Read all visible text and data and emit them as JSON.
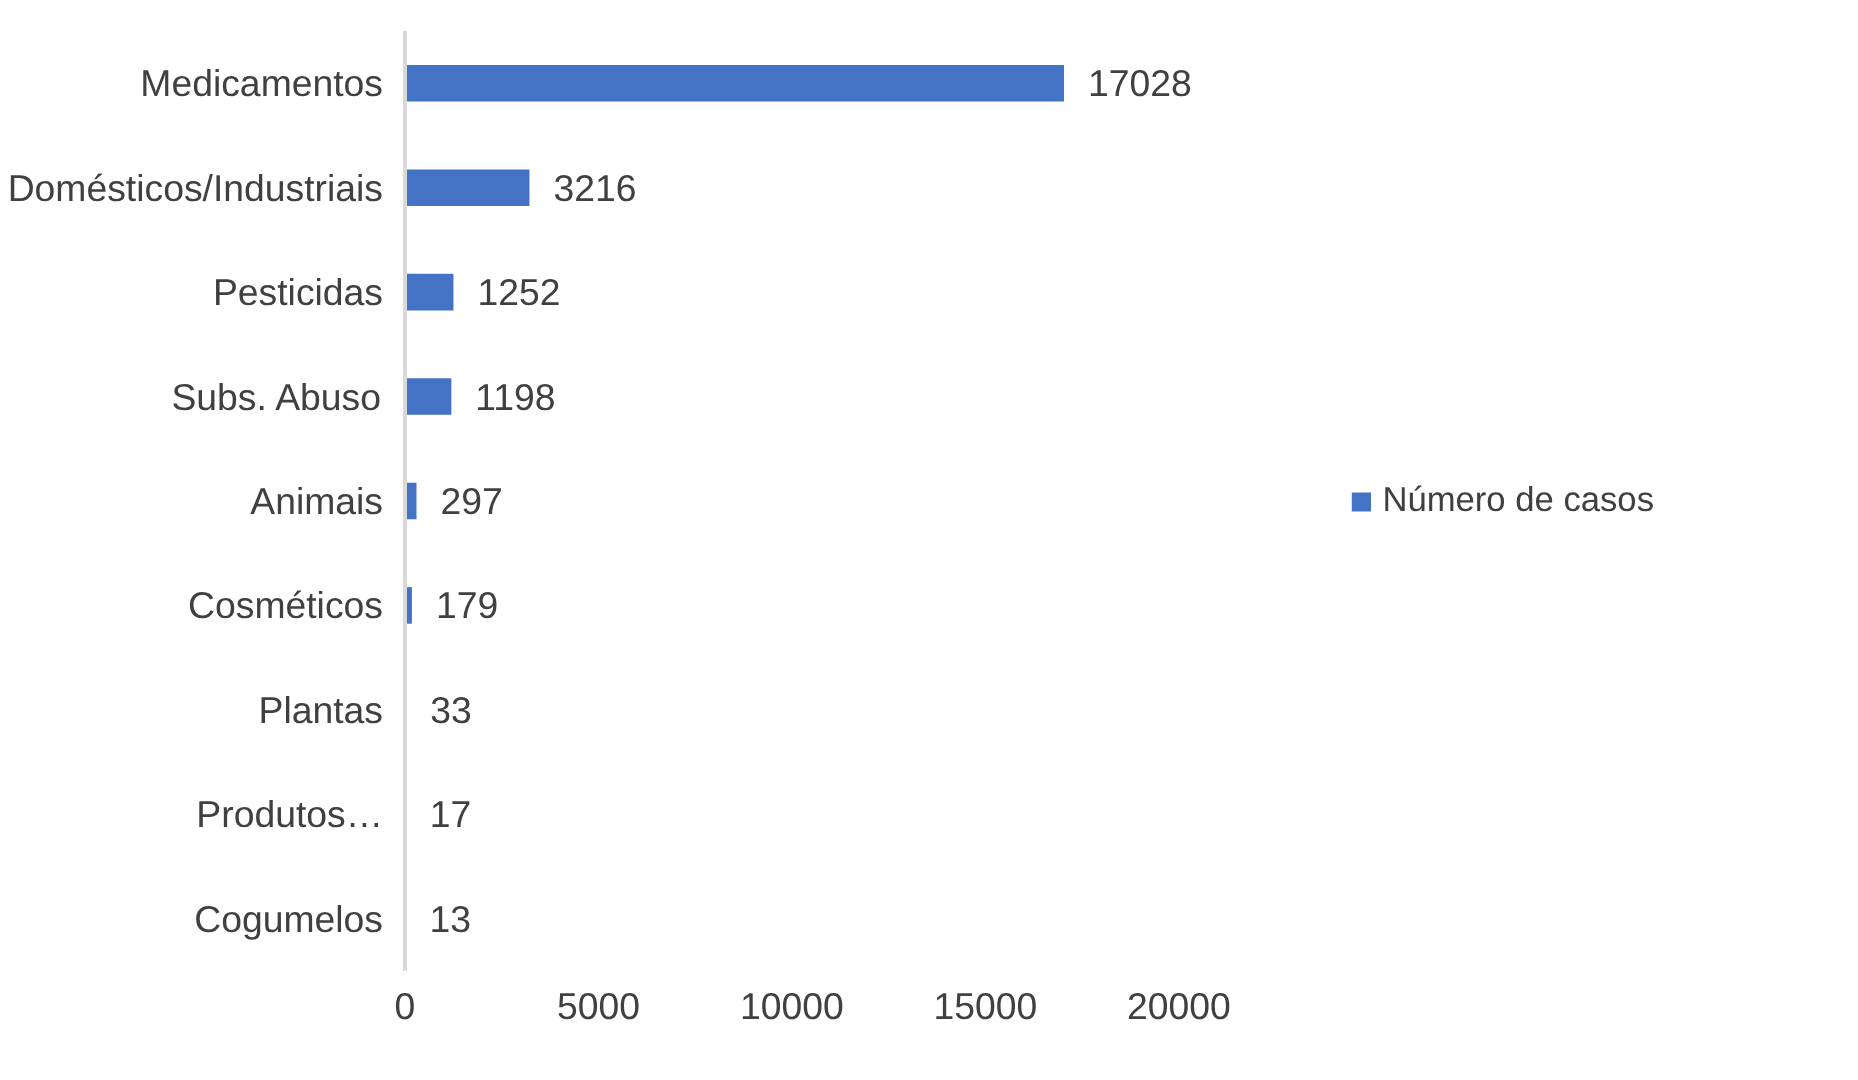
{
  "chart_data": {
    "type": "bar",
    "orientation": "horizontal",
    "categories": [
      "Medicamentos",
      "Domésticos/Industriais",
      "Pesticidas",
      "Subs. Abuso",
      "Animais",
      "Cosméticos",
      "Plantas",
      "Produtos…",
      "Cogumelos"
    ],
    "series": [
      {
        "name": "Número de casos",
        "color": "#4472c4",
        "values": [
          17028,
          3216,
          1252,
          1198,
          297,
          179,
          33,
          17,
          13
        ]
      }
    ],
    "xlim": [
      0,
      20000
    ],
    "xticks": [
      0,
      5000,
      10000,
      15000,
      20000
    ],
    "data_labels": true,
    "grid": false,
    "legend": "right"
  }
}
